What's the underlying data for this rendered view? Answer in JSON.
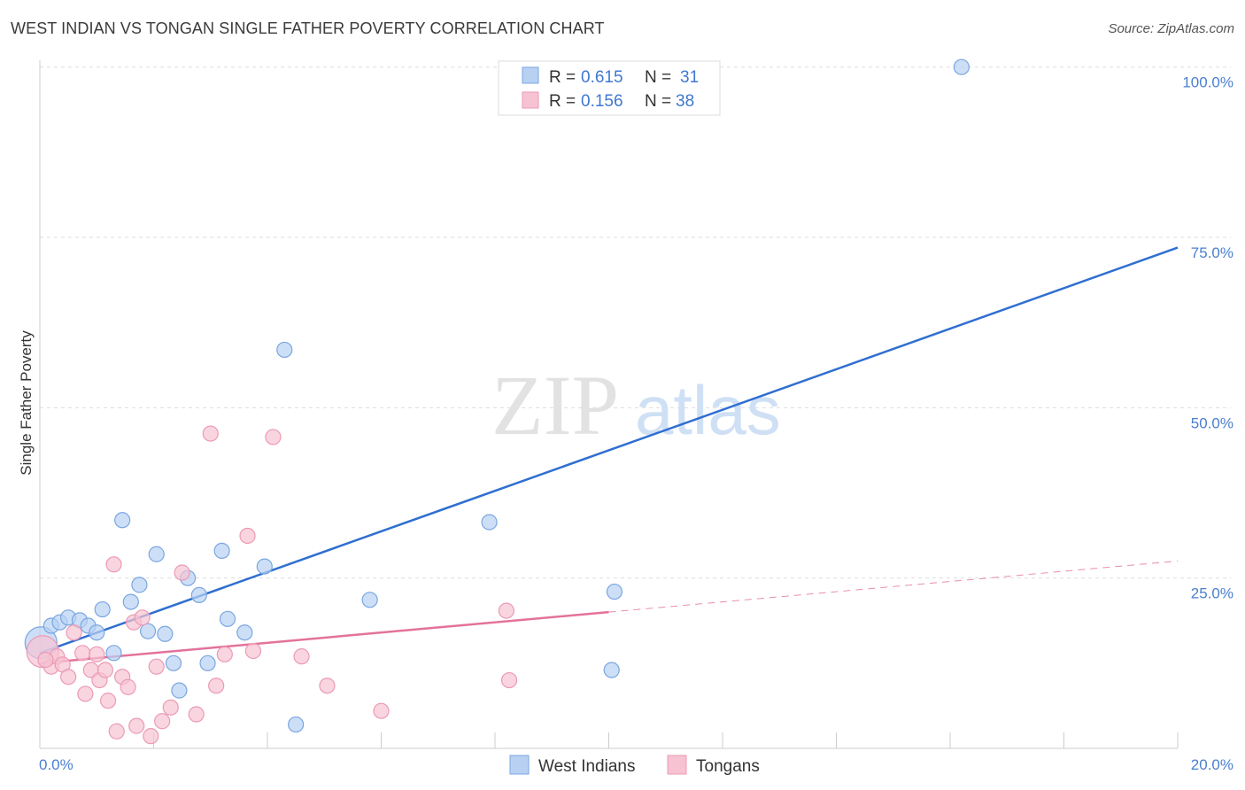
{
  "header": {
    "title": "WEST INDIAN VS TONGAN SINGLE FATHER POVERTY CORRELATION CHART",
    "source": "Source: ZipAtlas.com"
  },
  "colors": {
    "blue": "#4a86d8",
    "blue_fill": "#b8d1f3",
    "pink": "#e3729b",
    "pink_fill": "#f7c3d3",
    "tick": "#4a7fd0",
    "grid": "#dddddd"
  },
  "chart_data": {
    "type": "scatter",
    "title": "WEST INDIAN VS TONGAN SINGLE FATHER POVERTY CORRELATION CHART",
    "ylabel": "Single Father Poverty",
    "xlabel": "",
    "xlim": [
      0,
      20
    ],
    "ylim": [
      0,
      101
    ],
    "x_ticks": [
      "0.0%",
      "20.0%"
    ],
    "y_ticks": [
      {
        "value": 25,
        "label": "25.0%"
      },
      {
        "value": 50,
        "label": "50.0%"
      },
      {
        "value": 75,
        "label": "75.0%"
      },
      {
        "value": 100,
        "label": "100.0%"
      }
    ],
    "watermark": {
      "zip": "ZIP",
      "atlas": "atlas"
    },
    "stats": [
      {
        "r_label": "R =",
        "r": "0.615",
        "n_label": "N =",
        "n": "31"
      },
      {
        "r_label": "R =",
        "r": "0.156",
        "n_label": "N =",
        "n": "38"
      }
    ],
    "series": [
      {
        "name": "West Indians",
        "trend": {
          "x0": 0,
          "y0": 14.0,
          "x1": 20,
          "y1": 73.5,
          "dash_from": null
        },
        "points": [
          [
            0.02,
            15.5,
            1
          ],
          [
            0.2,
            18.0,
            0
          ],
          [
            0.35,
            18.5,
            0
          ],
          [
            0.5,
            19.2,
            0
          ],
          [
            0.7,
            18.8,
            0
          ],
          [
            0.85,
            18.0,
            0
          ],
          [
            1.0,
            17.0,
            0
          ],
          [
            1.1,
            20.4,
            0
          ],
          [
            1.3,
            14.0,
            0
          ],
          [
            1.45,
            33.5,
            0
          ],
          [
            1.6,
            21.5,
            0
          ],
          [
            1.75,
            24.0,
            0
          ],
          [
            1.9,
            17.2,
            0
          ],
          [
            2.05,
            28.5,
            0
          ],
          [
            2.2,
            16.8,
            0
          ],
          [
            2.35,
            12.5,
            0
          ],
          [
            2.45,
            8.5,
            0
          ],
          [
            2.6,
            25.0,
            0
          ],
          [
            2.8,
            22.5,
            0
          ],
          [
            2.95,
            12.5,
            0
          ],
          [
            3.2,
            29.0,
            0
          ],
          [
            3.3,
            19.0,
            0
          ],
          [
            3.6,
            17.0,
            0
          ],
          [
            3.95,
            26.7,
            0
          ],
          [
            4.3,
            58.5,
            0
          ],
          [
            4.5,
            3.5,
            0
          ],
          [
            5.8,
            21.8,
            0
          ],
          [
            7.9,
            33.2,
            0
          ],
          [
            10.1,
            23.0,
            0
          ],
          [
            10.05,
            11.5,
            0
          ],
          [
            16.2,
            100.0,
            0
          ]
        ]
      },
      {
        "name": "Tongans",
        "trend": {
          "x0": 0,
          "y0": 12.5,
          "x1": 20,
          "y1": 27.5,
          "dash_from": 10.0
        },
        "points": [
          [
            0.05,
            14.2,
            1
          ],
          [
            0.2,
            12.0,
            0
          ],
          [
            0.3,
            13.5,
            0
          ],
          [
            0.4,
            12.3,
            0
          ],
          [
            0.5,
            10.5,
            0
          ],
          [
            0.6,
            17.0,
            0
          ],
          [
            0.75,
            14.0,
            0
          ],
          [
            0.8,
            8.0,
            0
          ],
          [
            0.9,
            11.5,
            0
          ],
          [
            1.0,
            13.8,
            0
          ],
          [
            1.05,
            10.0,
            0
          ],
          [
            1.15,
            11.5,
            0
          ],
          [
            1.2,
            7.0,
            0
          ],
          [
            1.3,
            27.0,
            0
          ],
          [
            1.35,
            2.5,
            0
          ],
          [
            1.45,
            10.5,
            0
          ],
          [
            1.55,
            9.0,
            0
          ],
          [
            1.65,
            18.5,
            0
          ],
          [
            1.7,
            3.3,
            0
          ],
          [
            1.8,
            19.2,
            0
          ],
          [
            1.95,
            1.8,
            0
          ],
          [
            2.05,
            12.0,
            0
          ],
          [
            2.15,
            4.0,
            0
          ],
          [
            2.3,
            6.0,
            0
          ],
          [
            2.5,
            25.8,
            0
          ],
          [
            2.75,
            5.0,
            0
          ],
          [
            3.0,
            46.2,
            0
          ],
          [
            3.1,
            9.2,
            0
          ],
          [
            3.25,
            13.8,
            0
          ],
          [
            3.65,
            31.2,
            0
          ],
          [
            3.75,
            14.3,
            0
          ],
          [
            4.1,
            45.7,
            0
          ],
          [
            4.6,
            13.5,
            0
          ],
          [
            5.05,
            9.2,
            0
          ],
          [
            6.0,
            5.5,
            0
          ],
          [
            8.2,
            20.2,
            0
          ],
          [
            8.25,
            10.0,
            0
          ],
          [
            0.1,
            13.0,
            0
          ]
        ]
      }
    ]
  }
}
